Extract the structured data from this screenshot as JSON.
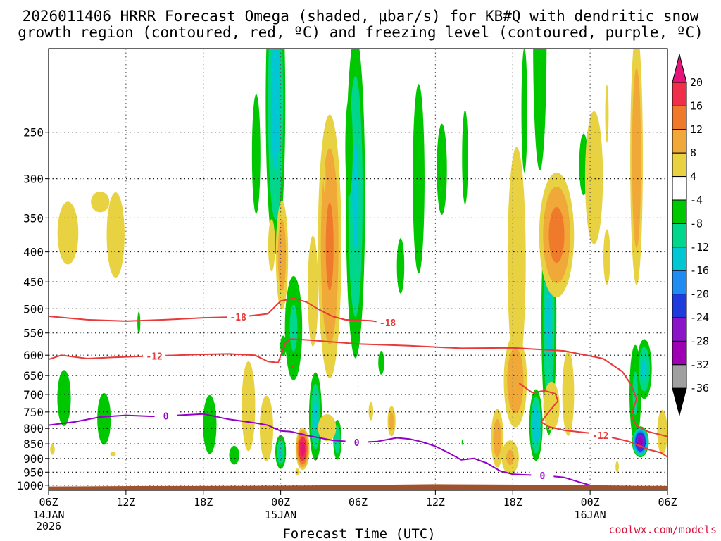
{
  "chart_data": {
    "type": "heatmap",
    "title": "2026011406 HRRR Forecast Omega (shaded, μbar/s) for KB#Q with dendritic snow growth region (contoured, red, °C) and freezing level (contoured, purple, °C)",
    "title_lines": [
      "2026011406 HRRR Forecast Omega (shaded, μbar/s) for KB#Q with dendritic snow",
      "growth region (contoured, red, ºC) and freezing level (contoured, purple, ºC)"
    ],
    "xlabel": "Forecast Time (UTC)",
    "ylabel": "",
    "credit": "coolwx.com/models",
    "x_range_hours": [
      0,
      48
    ],
    "y_range_hpa": [
      1020,
      180
    ],
    "x_ticks": [
      {
        "hour": 0,
        "label": "06Z",
        "sub": [
          "14JAN",
          "2026"
        ]
      },
      {
        "hour": 6,
        "label": "12Z",
        "sub": []
      },
      {
        "hour": 12,
        "label": "18Z",
        "sub": []
      },
      {
        "hour": 18,
        "label": "00Z",
        "sub": [
          "15JAN"
        ]
      },
      {
        "hour": 24,
        "label": "06Z",
        "sub": []
      },
      {
        "hour": 30,
        "label": "12Z",
        "sub": []
      },
      {
        "hour": 36,
        "label": "18Z",
        "sub": []
      },
      {
        "hour": 42,
        "label": "00Z",
        "sub": [
          "16JAN"
        ]
      },
      {
        "hour": 48,
        "label": "06Z",
        "sub": []
      }
    ],
    "y_ticks": [
      250,
      300,
      350,
      400,
      450,
      500,
      550,
      600,
      650,
      700,
      750,
      800,
      850,
      900,
      950,
      1000
    ],
    "colorbar": {
      "labels": [
        "20",
        "16",
        "12",
        "8",
        "4",
        "-4",
        "-8",
        "-12",
        "-16",
        "-20",
        "-24",
        "-28",
        "-32",
        "-36"
      ],
      "bands": [
        {
          "lo": 16,
          "hi": 20,
          "color": "#f0304a"
        },
        {
          "lo": 12,
          "hi": 16,
          "color": "#f07a2c"
        },
        {
          "lo": 8,
          "hi": 12,
          "color": "#f0a838"
        },
        {
          "lo": 4,
          "hi": 8,
          "color": "#e8d242"
        },
        {
          "lo": -4,
          "hi": 4,
          "color": "#ffffff"
        },
        {
          "lo": -8,
          "hi": -4,
          "color": "#00c800"
        },
        {
          "lo": -12,
          "hi": -8,
          "color": "#00d68c"
        },
        {
          "lo": -16,
          "hi": -12,
          "color": "#00c8d2"
        },
        {
          "lo": -20,
          "hi": -16,
          "color": "#1e8cf0"
        },
        {
          "lo": -24,
          "hi": -20,
          "color": "#1e3cdc"
        },
        {
          "lo": -28,
          "hi": -24,
          "color": "#8c14c8"
        },
        {
          "lo": -32,
          "hi": -28,
          "color": "#a000b4"
        },
        {
          "lo": -36,
          "hi": -32,
          "color": "#a0a0a0"
        }
      ],
      "top_color": "#e6147a",
      "bottom_color": "#000000"
    },
    "features": [
      {
        "kind": "down",
        "t": 1.5,
        "p": 380,
        "dt": 1.4,
        "dp": 80,
        "peak": 6
      },
      {
        "kind": "down",
        "t": 5.2,
        "p": 390,
        "dt": 1.2,
        "dp": 110,
        "peak": 6
      },
      {
        "kind": "down",
        "t": 4.0,
        "p": 330,
        "dt": 1.6,
        "dp": 30,
        "peak": 5
      },
      {
        "kind": "up",
        "t": 1.2,
        "p": 720,
        "dt": 0.8,
        "dp": 120,
        "peak": -7
      },
      {
        "kind": "up",
        "t": 4.3,
        "p": 780,
        "dt": 0.8,
        "dp": 120,
        "peak": -7
      },
      {
        "kind": "up",
        "t": 7.0,
        "p": 530,
        "dt": 0.2,
        "dp": 40,
        "peak": -6
      },
      {
        "kind": "down",
        "t": 0.3,
        "p": 870,
        "dt": 0.4,
        "dp": 40,
        "peak": 5
      },
      {
        "kind": "down",
        "t": 5.0,
        "p": 885,
        "dt": 0.5,
        "dp": 20,
        "peak": 5
      },
      {
        "kind": "up",
        "t": 12.5,
        "p": 800,
        "dt": 0.8,
        "dp": 140,
        "peak": -7
      },
      {
        "kind": "up",
        "t": 14.4,
        "p": 890,
        "dt": 0.6,
        "dp": 50,
        "peak": -7
      },
      {
        "kind": "up",
        "t": 16.1,
        "p": 290,
        "dt": 0.5,
        "dp": 100,
        "peak": -7
      },
      {
        "kind": "up",
        "t": 17.6,
        "p": 280,
        "dt": 0.9,
        "dp": 170,
        "peak": -14
      },
      {
        "kind": "down",
        "t": 17.3,
        "p": 400,
        "dt": 0.6,
        "dp": 90,
        "peak": 5
      },
      {
        "kind": "down",
        "t": 18.1,
        "p": 420,
        "dt": 0.6,
        "dp": 110,
        "peak": 11
      },
      {
        "kind": "down",
        "t": 15.5,
        "p": 760,
        "dt": 0.8,
        "dp": 200,
        "peak": 7
      },
      {
        "kind": "down",
        "t": 16.9,
        "p": 820,
        "dt": 0.9,
        "dp": 180,
        "peak": 6
      },
      {
        "kind": "up",
        "t": 18.0,
        "p": 880,
        "dt": 0.5,
        "dp": 70,
        "peak": -13
      },
      {
        "kind": "up",
        "t": 18.2,
        "p": 580,
        "dt": 0.4,
        "dp": 40,
        "peak": -6
      },
      {
        "kind": "down",
        "t": 19.7,
        "p": 870,
        "dt": 0.6,
        "dp": 80,
        "peak": 22
      },
      {
        "kind": "down",
        "t": 19.3,
        "p": 950,
        "dt": 0.4,
        "dp": 30,
        "peak": 5
      },
      {
        "kind": "up",
        "t": 20.7,
        "p": 780,
        "dt": 0.6,
        "dp": 160,
        "peak": -13
      },
      {
        "kind": "up",
        "t": 22.4,
        "p": 840,
        "dt": 0.4,
        "dp": 80,
        "peak": -12
      },
      {
        "kind": "down",
        "t": 21.6,
        "p": 800,
        "dt": 1.0,
        "dp": 60,
        "peak": 8
      },
      {
        "kind": "down",
        "t": 21.8,
        "p": 470,
        "dt": 1.1,
        "dp": 260,
        "peak": 13
      },
      {
        "kind": "down",
        "t": 20.5,
        "p": 500,
        "dt": 0.7,
        "dp": 180,
        "peak": 6
      },
      {
        "kind": "up",
        "t": 19.0,
        "p": 560,
        "dt": 0.9,
        "dp": 150,
        "peak": -9
      },
      {
        "kind": "up",
        "t": 23.8,
        "p": 420,
        "dt": 0.9,
        "dp": 270,
        "peak": -13
      },
      {
        "kind": "up",
        "t": 23.3,
        "p": 280,
        "dt": 0.5,
        "dp": 90,
        "peak": -6
      },
      {
        "kind": "down",
        "t": 21.4,
        "p": 300,
        "dt": 0.2,
        "dp": 40,
        "peak": 5
      },
      {
        "kind": "down",
        "t": 25.0,
        "p": 750,
        "dt": 0.4,
        "dp": 60,
        "peak": 5
      },
      {
        "kind": "up",
        "t": 25.8,
        "p": 620,
        "dt": 0.4,
        "dp": 50,
        "peak": -6
      },
      {
        "kind": "down",
        "t": 26.6,
        "p": 780,
        "dt": 0.4,
        "dp": 60,
        "peak": 10
      },
      {
        "kind": "up",
        "t": 27.3,
        "p": 430,
        "dt": 0.5,
        "dp": 80,
        "peak": -6
      },
      {
        "kind": "up",
        "t": 28.7,
        "p": 350,
        "dt": 0.7,
        "dp": 180,
        "peak": -7
      },
      {
        "kind": "up",
        "t": 30.5,
        "p": 300,
        "dt": 0.6,
        "dp": 80,
        "peak": -7
      },
      {
        "kind": "up",
        "t": 32.3,
        "p": 290,
        "dt": 0.4,
        "dp": 90,
        "peak": -6
      },
      {
        "kind": "up",
        "t": 32.1,
        "p": 845,
        "dt": 0.1,
        "dp": 15,
        "peak": -6
      },
      {
        "kind": "down",
        "t": 34.8,
        "p": 840,
        "dt": 0.6,
        "dp": 120,
        "peak": 11
      },
      {
        "kind": "down",
        "t": 36.3,
        "p": 500,
        "dt": 1.0,
        "dp": 280,
        "peak": 8
      },
      {
        "kind": "down",
        "t": 36.2,
        "p": 680,
        "dt": 1.1,
        "dp": 150,
        "peak": 12
      },
      {
        "kind": "down",
        "t": 35.8,
        "p": 900,
        "dt": 0.9,
        "dp": 80,
        "peak": 9
      },
      {
        "kind": "up",
        "t": 36.9,
        "p": 250,
        "dt": 0.4,
        "dp": 100,
        "peak": -6
      },
      {
        "kind": "up",
        "t": 38.1,
        "p": 230,
        "dt": 0.8,
        "dp": 150,
        "peak": -7
      },
      {
        "kind": "up",
        "t": 37.8,
        "p": 800,
        "dt": 0.6,
        "dp": 130,
        "peak": -15
      },
      {
        "kind": "up",
        "t": 38.8,
        "p": 600,
        "dt": 0.7,
        "dp": 300,
        "peak": -13
      },
      {
        "kind": "down",
        "t": 39.4,
        "p": 390,
        "dt": 1.6,
        "dp": 110,
        "peak": 14
      },
      {
        "kind": "down",
        "t": 39.0,
        "p": 740,
        "dt": 0.9,
        "dp": 100,
        "peak": 8
      },
      {
        "kind": "down",
        "t": 40.3,
        "p": 720,
        "dt": 0.7,
        "dp": 180,
        "peak": 7
      },
      {
        "kind": "up",
        "t": 41.5,
        "p": 290,
        "dt": 0.6,
        "dp": 60,
        "peak": -6
      },
      {
        "kind": "down",
        "t": 42.3,
        "p": 330,
        "dt": 1.2,
        "dp": 140,
        "peak": 6
      },
      {
        "kind": "down",
        "t": 43.3,
        "p": 240,
        "dt": 0.3,
        "dp": 60,
        "peak": 5
      },
      {
        "kind": "down",
        "t": 43.3,
        "p": 420,
        "dt": 0.6,
        "dp": 100,
        "peak": 5
      },
      {
        "kind": "down",
        "t": 45.6,
        "p": 330,
        "dt": 0.6,
        "dp": 180,
        "peak": 12
      },
      {
        "kind": "up",
        "t": 45.5,
        "p": 720,
        "dt": 0.6,
        "dp": 180,
        "peak": -9
      },
      {
        "kind": "up",
        "t": 46.2,
        "p": 640,
        "dt": 0.7,
        "dp": 90,
        "peak": -13
      },
      {
        "kind": "up",
        "t": 45.9,
        "p": 845,
        "dt": 0.7,
        "dp": 55,
        "peak": -30
      },
      {
        "kind": "down",
        "t": 44.1,
        "p": 930,
        "dt": 0.2,
        "dp": 30,
        "peak": 7
      },
      {
        "kind": "down",
        "t": 47.6,
        "p": 820,
        "dt": 0.6,
        "dp": 110,
        "peak": 7
      }
    ],
    "dendritic_m18": {
      "label": "-18",
      "hours": [
        0,
        3,
        6,
        9,
        12,
        15,
        17,
        18,
        19,
        20,
        21,
        22,
        23,
        24,
        25,
        26,
        27
      ],
      "p": [
        515,
        522,
        525,
        522,
        518,
        516,
        510,
        485,
        480,
        487,
        502,
        515,
        522,
        523,
        524,
        528,
        528
      ]
    },
    "dendritic_m12": {
      "label": "-12",
      "hours": [
        0,
        1,
        3,
        5,
        8,
        10,
        12,
        14,
        16,
        17,
        17.8,
        18.4,
        18.8,
        20,
        24,
        28,
        32,
        36,
        40,
        43,
        44.5,
        45.2,
        45.6,
        45.2,
        45.6,
        46.5,
        48
      ],
      "p": [
        610,
        600,
        608,
        605,
        602,
        600,
        598,
        597,
        600,
        615,
        618,
        570,
        563,
        565,
        574,
        578,
        584,
        583,
        590,
        608,
        640,
        675,
        712,
        760,
        792,
        810,
        826
      ]
    },
    "dendritic_m12_low": {
      "label": "-12",
      "hours": [
        36.5,
        37.5,
        38.5,
        39.3,
        39.5,
        38.8,
        38.2,
        38.8,
        40,
        42,
        43.6,
        45,
        46.6,
        47.5,
        48
      ],
      "p": [
        670,
        695,
        690,
        698,
        718,
        750,
        780,
        795,
        806,
        815,
        828,
        842,
        870,
        880,
        895
      ]
    },
    "freezing_level": {
      "label": "0",
      "hours": [
        0,
        2,
        4,
        6,
        8,
        10,
        12,
        14,
        16,
        17,
        18,
        18.8,
        20,
        22,
        24,
        25.5,
        27,
        28,
        29,
        30,
        31,
        32,
        33,
        34,
        35,
        36,
        37,
        38,
        39,
        40,
        41,
        42
      ],
      "p": [
        790,
        780,
        765,
        760,
        763,
        760,
        756,
        772,
        783,
        790,
        808,
        810,
        822,
        838,
        845,
        842,
        830,
        834,
        844,
        858,
        880,
        905,
        900,
        917,
        945,
        958,
        960,
        962,
        965,
        970,
        985,
        1000
      ]
    },
    "m18_label_hours": [
      14.7,
      26.3
    ],
    "m12_label_hours": [
      8.2,
      42.8
    ],
    "fz_label_hours": [
      9.1,
      23.9,
      38.3
    ],
    "terrain": {
      "hours": [
        0,
        4,
        8,
        12,
        16,
        20,
        24,
        28,
        30,
        34,
        38,
        42,
        45,
        48
      ],
      "p": [
        1005,
        1004,
        1003,
        1003,
        1002,
        1001,
        999,
        997,
        996,
        997,
        998,
        1000,
        1002,
        1003
      ],
      "color": "#a0522d"
    }
  }
}
